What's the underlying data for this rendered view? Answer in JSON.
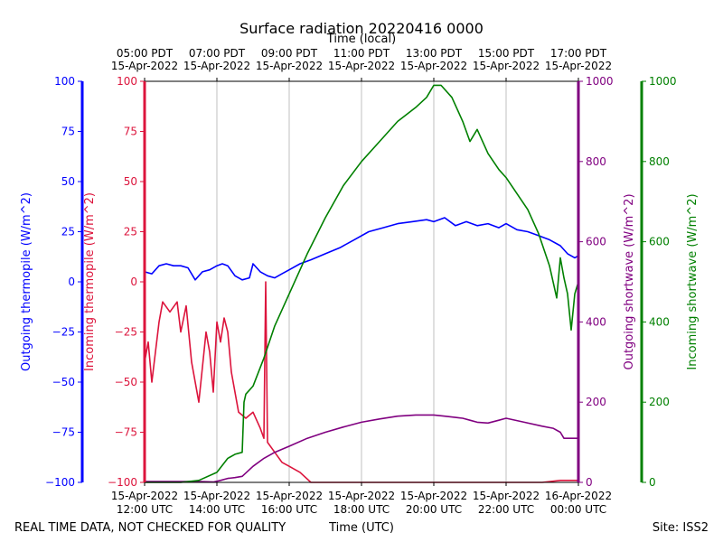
{
  "chart_data": {
    "type": "line",
    "title": "Surface radiation 20220416 0000",
    "top_axis_label": "Time (local)",
    "bottom_axis_label": "Time (UTC)",
    "footer_left": "REAL TIME DATA, NOT CHECKED FOR QUALITY",
    "footer_right": "Site: ISS2",
    "x_range_hours_utc": [
      12,
      24
    ],
    "top_ticks": [
      {
        "t": 12,
        "time": "05:00 PDT",
        "date": "15-Apr-2022"
      },
      {
        "t": 14,
        "time": "07:00 PDT",
        "date": "15-Apr-2022"
      },
      {
        "t": 16,
        "time": "09:00 PDT",
        "date": "15-Apr-2022"
      },
      {
        "t": 18,
        "time": "11:00 PDT",
        "date": "15-Apr-2022"
      },
      {
        "t": 20,
        "time": "13:00 PDT",
        "date": "15-Apr-2022"
      },
      {
        "t": 22,
        "time": "15:00 PDT",
        "date": "15-Apr-2022"
      },
      {
        "t": 24,
        "time": "17:00 PDT",
        "date": "15-Apr-2022"
      }
    ],
    "bottom_ticks": [
      {
        "t": 12,
        "date": "15-Apr-2022",
        "time": "12:00 UTC"
      },
      {
        "t": 14,
        "date": "15-Apr-2022",
        "time": "14:00 UTC"
      },
      {
        "t": 16,
        "date": "15-Apr-2022",
        "time": "16:00 UTC"
      },
      {
        "t": 18,
        "date": "15-Apr-2022",
        "time": "18:00 UTC"
      },
      {
        "t": 20,
        "date": "15-Apr-2022",
        "time": "20:00 UTC"
      },
      {
        "t": 22,
        "date": "15-Apr-2022",
        "time": "22:00 UTC"
      },
      {
        "t": 24,
        "date": "16-Apr-2022",
        "time": "00:00 UTC"
      }
    ],
    "axes": {
      "outgoing_thermopile": {
        "label": "Outgoing thermopile (W/m^2)",
        "color": "#0000ff",
        "ylim": [
          -100,
          100
        ],
        "ticks": [
          "100",
          "75",
          "50",
          "25",
          "0",
          "−25",
          "−50",
          "−75",
          "−100"
        ]
      },
      "incoming_thermopile": {
        "label": "Incoming thermopile (W/m^2)",
        "color": "#dc143c",
        "ylim": [
          -100,
          100
        ],
        "ticks": [
          "100",
          "75",
          "50",
          "25",
          "0",
          "−25",
          "−50",
          "−75",
          "−100"
        ]
      },
      "outgoing_shortwave": {
        "label": "Outgoing shortwave (W/m^2)",
        "color": "#800080",
        "ylim": [
          0,
          1000
        ],
        "ticks": [
          "1000",
          "800",
          "600",
          "400",
          "200",
          "0"
        ]
      },
      "incoming_shortwave": {
        "label": "Incoming shortwave (W/m^2)",
        "color": "#008000",
        "ylim": [
          0,
          1000
        ],
        "ticks": [
          "1000",
          "800",
          "600",
          "400",
          "200",
          "0"
        ]
      }
    },
    "series": [
      {
        "name": "Outgoing thermopile",
        "axis": "outgoing_thermopile",
        "color": "#0000ff",
        "x": [
          12.0,
          12.2,
          12.4,
          12.6,
          12.8,
          13.0,
          13.2,
          13.4,
          13.6,
          13.8,
          14.0,
          14.15,
          14.3,
          14.5,
          14.7,
          14.9,
          15.0,
          15.2,
          15.4,
          15.6,
          15.8,
          16.0,
          16.3,
          16.6,
          17.0,
          17.4,
          17.8,
          18.2,
          18.6,
          19.0,
          19.4,
          19.8,
          20.0,
          20.3,
          20.6,
          20.9,
          21.2,
          21.5,
          21.8,
          22.0,
          22.3,
          22.6,
          22.9,
          23.2,
          23.5,
          23.7,
          23.9,
          24.0
        ],
        "y": [
          5,
          4,
          8,
          9,
          8,
          8,
          7,
          1,
          5,
          6,
          8,
          9,
          8,
          3,
          1,
          2,
          9,
          5,
          3,
          2,
          4,
          6,
          9,
          11,
          14,
          17,
          21,
          25,
          27,
          29,
          30,
          31,
          30,
          32,
          28,
          30,
          28,
          29,
          27,
          29,
          26,
          25,
          23,
          21,
          18,
          14,
          12,
          13
        ]
      },
      {
        "name": "Incoming thermopile",
        "axis": "incoming_thermopile",
        "color": "#dc143c",
        "x": [
          12.0,
          12.1,
          12.2,
          12.3,
          12.4,
          12.5,
          12.7,
          12.9,
          13.0,
          13.15,
          13.3,
          13.5,
          13.7,
          13.8,
          13.9,
          14.0,
          14.1,
          14.2,
          14.3,
          14.4,
          14.6,
          14.8,
          15.0,
          15.2,
          15.3,
          15.35,
          15.4,
          15.6,
          15.8,
          16.0,
          16.3,
          16.6,
          17.0,
          17.5,
          18.0,
          19.0,
          20.0,
          21.0,
          22.0,
          23.0,
          23.5,
          24.0
        ],
        "y": [
          -40,
          -30,
          -50,
          -35,
          -20,
          -10,
          -15,
          -10,
          -25,
          -12,
          -40,
          -60,
          -25,
          -35,
          -55,
          -20,
          -30,
          -18,
          -25,
          -45,
          -65,
          -68,
          -65,
          -73,
          -78,
          0,
          -80,
          -85,
          -90,
          -92,
          -95,
          -100,
          -100,
          -100,
          -100,
          -100,
          -100,
          -100,
          -100,
          -100,
          -99,
          -99
        ]
      },
      {
        "name": "Outgoing shortwave",
        "axis": "outgoing_shortwave",
        "color": "#800080",
        "x": [
          12.0,
          13.0,
          13.5,
          13.9,
          14.1,
          14.3,
          14.5,
          14.7,
          15.0,
          15.3,
          15.6,
          16.0,
          16.5,
          17.0,
          17.5,
          18.0,
          18.5,
          19.0,
          19.5,
          20.0,
          20.3,
          20.6,
          20.8,
          21.0,
          21.2,
          21.5,
          21.8,
          22.0,
          22.5,
          23.0,
          23.3,
          23.5,
          23.6,
          23.8,
          24.0
        ],
        "y": [
          2,
          2,
          2,
          1,
          5,
          10,
          12,
          15,
          40,
          60,
          75,
          90,
          110,
          125,
          138,
          150,
          158,
          165,
          168,
          168,
          165,
          162,
          160,
          155,
          150,
          148,
          155,
          160,
          150,
          140,
          135,
          125,
          110,
          110,
          110
        ]
      },
      {
        "name": "Incoming shortwave",
        "axis": "incoming_shortwave",
        "color": "#008000",
        "x": [
          12.0,
          13.0,
          13.5,
          14.0,
          14.3,
          14.5,
          14.7,
          14.75,
          14.8,
          15.0,
          15.3,
          15.6,
          16.0,
          16.5,
          17.0,
          17.5,
          18.0,
          18.5,
          19.0,
          19.5,
          19.8,
          20.0,
          20.2,
          20.5,
          20.8,
          21.0,
          21.2,
          21.5,
          21.8,
          22.0,
          22.3,
          22.6,
          22.9,
          23.2,
          23.4,
          23.5,
          23.6,
          23.7,
          23.8,
          23.9,
          24.0
        ],
        "y": [
          0,
          0,
          5,
          25,
          60,
          70,
          75,
          200,
          220,
          240,
          310,
          390,
          470,
          570,
          660,
          740,
          800,
          850,
          900,
          935,
          960,
          990,
          990,
          960,
          900,
          850,
          880,
          820,
          780,
          760,
          720,
          680,
          620,
          540,
          460,
          560,
          510,
          470,
          380,
          470,
          500
        ]
      }
    ]
  }
}
